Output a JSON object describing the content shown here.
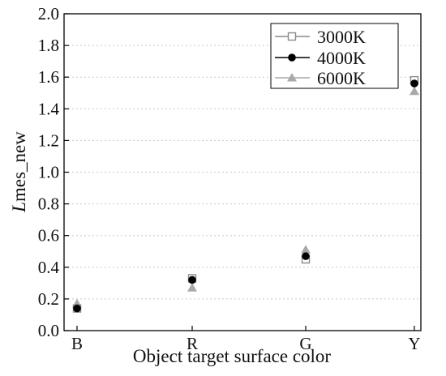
{
  "chart_data": {
    "type": "scatter",
    "title": "",
    "xlabel": "Object target surface color",
    "ylabel_italic": "L",
    "ylabel_rest": "mes_new",
    "categories": [
      "B",
      "R",
      "G",
      "Y"
    ],
    "ylim": [
      0.0,
      2.0
    ],
    "yticks": [
      "0.0",
      "0.2",
      "0.4",
      "0.6",
      "0.8",
      "1.0",
      "1.2",
      "1.4",
      "1.6",
      "1.8",
      "2.0"
    ],
    "grid": "horizontal-dotted",
    "legend_position": "top-right",
    "series": [
      {
        "name": "3000K",
        "marker": "open-square",
        "color": "#8a8a8a",
        "values": [
          0.14,
          0.33,
          0.45,
          1.58
        ]
      },
      {
        "name": "4000K",
        "marker": "filled-circle",
        "color": "#000000",
        "values": [
          0.14,
          0.32,
          0.47,
          1.56
        ]
      },
      {
        "name": "6000K",
        "marker": "filled-triangle",
        "color": "#a9a9a9",
        "values": [
          0.17,
          0.27,
          0.51,
          1.51
        ]
      }
    ]
  }
}
